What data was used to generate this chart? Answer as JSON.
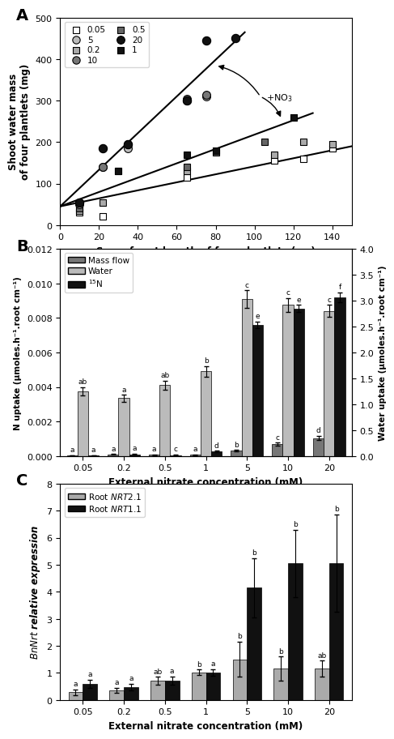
{
  "panel_A": {
    "xlabel": "Sum of root length of four plantlets (cm)",
    "ylabel": "Shoot water mass\nof four plantlets (mg)",
    "xlim": [
      0,
      150
    ],
    "ylim": [
      0,
      500
    ],
    "xticks": [
      0,
      20,
      40,
      60,
      80,
      100,
      120,
      140
    ],
    "yticks": [
      0,
      100,
      200,
      300,
      400,
      500
    ],
    "scatter_groups": [
      {
        "label": "0.05",
        "marker": "s",
        "facecolor": "white",
        "edgecolor": "black",
        "size": 35,
        "x": [
          10,
          22,
          65,
          110,
          125,
          140
        ],
        "y": [
          30,
          20,
          115,
          155,
          160,
          185
        ]
      },
      {
        "label": "0.2",
        "marker": "s",
        "facecolor": "#aaaaaa",
        "edgecolor": "black",
        "size": 35,
        "x": [
          10,
          22,
          65,
          110,
          125,
          140
        ],
        "y": [
          35,
          55,
          130,
          170,
          200,
          195
        ]
      },
      {
        "label": "0.5",
        "marker": "s",
        "facecolor": "#666666",
        "edgecolor": "black",
        "size": 35,
        "x": [
          10,
          30,
          65,
          80,
          105
        ],
        "y": [
          40,
          130,
          140,
          175,
          200
        ]
      },
      {
        "label": "1",
        "marker": "s",
        "facecolor": "#111111",
        "edgecolor": "black",
        "size": 35,
        "x": [
          10,
          30,
          65,
          80,
          120
        ],
        "y": [
          50,
          130,
          170,
          180,
          260
        ]
      },
      {
        "label": "5",
        "marker": "o",
        "facecolor": "#bbbbbb",
        "edgecolor": "black",
        "size": 50,
        "x": [
          10,
          22,
          35,
          65,
          75
        ],
        "y": [
          50,
          140,
          185,
          300,
          310
        ]
      },
      {
        "label": "10",
        "marker": "o",
        "facecolor": "#777777",
        "edgecolor": "black",
        "size": 50,
        "x": [
          10,
          22,
          35,
          65,
          75
        ],
        "y": [
          55,
          140,
          195,
          305,
          315
        ]
      },
      {
        "label": "20",
        "marker": "o",
        "facecolor": "#111111",
        "edgecolor": "black",
        "size": 55,
        "x": [
          10,
          22,
          35,
          65,
          75,
          90
        ],
        "y": [
          55,
          185,
          195,
          300,
          445,
          450
        ]
      }
    ],
    "trendlines": [
      {
        "x": [
          0,
          150
        ],
        "y": [
          45,
          190
        ],
        "color": "black",
        "lw": 1.5
      },
      {
        "x": [
          0,
          130
        ],
        "y": [
          45,
          270
        ],
        "color": "black",
        "lw": 1.5
      },
      {
        "x": [
          0,
          95
        ],
        "y": [
          45,
          465
        ],
        "color": "black",
        "lw": 1.5
      }
    ],
    "legend_order": [
      0,
      4,
      1,
      5,
      2,
      6,
      3
    ]
  },
  "panel_B": {
    "xlabel": "External nitrate concentration (mM)",
    "ylabel_left": "N uptake (μmoles.h⁻¹.root cm⁻¹)",
    "ylabel_right": "Water uptake (μmoles.h⁻¹.root cm⁻¹)",
    "concentrations": [
      "0.05",
      "0.2",
      "0.5",
      "1",
      "5",
      "10",
      "20"
    ],
    "ylim_left": [
      0,
      0.012
    ],
    "ylim_right": [
      0,
      4.0
    ],
    "yticks_left": [
      0.0,
      0.002,
      0.004,
      0.006,
      0.008,
      0.01,
      0.012
    ],
    "yticks_right": [
      0.0,
      0.5,
      1.0,
      1.5,
      2.0,
      2.5,
      3.0,
      3.5,
      4.0
    ],
    "mass_flow": {
      "values": [
        4.5e-05,
        9.5e-05,
        7e-05,
        6.5e-05,
        0.00032,
        0.0007,
        0.00105
      ],
      "errors": [
        1.5e-05,
        2e-05,
        2e-05,
        1.5e-05,
        4e-05,
        8e-05,
        0.00012
      ],
      "color": "#777777"
    },
    "water": {
      "values": [
        0.00375,
        0.00335,
        0.0041,
        0.0049,
        0.0091,
        0.00875,
        0.0084
      ],
      "errors": [
        0.00025,
        0.0002,
        0.00025,
        0.0003,
        0.0005,
        0.0004,
        0.00035
      ],
      "color": "#bbbbbb"
    },
    "n15": {
      "values": [
        4e-05,
        0.00011,
        6e-05,
        0.00027,
        0.0076,
        0.00855,
        0.0092
      ],
      "errors": [
        1e-05,
        2.5e-05,
        2e-05,
        4e-05,
        0.0002,
        0.0002,
        0.00028
      ],
      "color": "#111111"
    },
    "labels_massflow": [
      "a",
      "a",
      "a",
      "a",
      "b",
      "c",
      "d"
    ],
    "labels_water": [
      "ab",
      "a",
      "ab",
      "b",
      "c",
      "c",
      "c"
    ],
    "labels_n15": [
      "a",
      "a",
      "c",
      "d",
      "e",
      "e",
      "f"
    ],
    "legend_labels": [
      "Mass flow",
      "Water",
      "$^{15}$N"
    ]
  },
  "panel_C": {
    "xlabel": "External nitrate concentration (mM)",
    "ylabel": "$BnNrt$ relative expression",
    "concentrations": [
      "0.05",
      "0.2",
      "0.5",
      "1",
      "5",
      "10",
      "20"
    ],
    "ylim": [
      0,
      8
    ],
    "yticks": [
      0,
      1,
      2,
      3,
      4,
      5,
      6,
      7,
      8
    ],
    "nrt21": {
      "values": [
        0.28,
        0.35,
        0.7,
        1.02,
        1.5,
        1.15,
        1.15
      ],
      "errors": [
        0.1,
        0.1,
        0.15,
        0.1,
        0.65,
        0.45,
        0.3
      ],
      "color": "#aaaaaa"
    },
    "nrt11": {
      "values": [
        0.6,
        0.48,
        0.72,
        1.02,
        4.15,
        5.05,
        5.05
      ],
      "errors": [
        0.15,
        0.12,
        0.15,
        0.12,
        1.1,
        1.25,
        1.8
      ],
      "color": "#111111"
    },
    "labels_nrt21": [
      "a",
      "a",
      "ab",
      "b",
      "b",
      "b",
      "ab"
    ],
    "labels_nrt11": [
      "a",
      "a",
      "a",
      "a",
      "b",
      "b",
      "b"
    ],
    "legend_labels": [
      "Root $NRT2.1$",
      "Root $NRT1.1$"
    ]
  }
}
